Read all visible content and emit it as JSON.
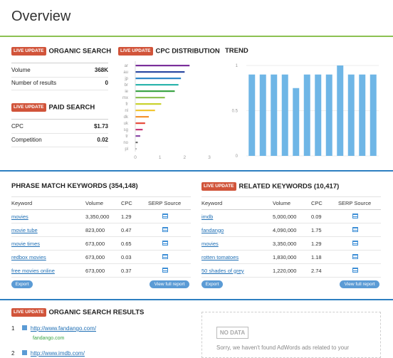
{
  "page": {
    "title": "Overview"
  },
  "organic_search": {
    "badge": "live update",
    "title": "ORGANIC SEARCH",
    "rows": [
      {
        "label": "Volume",
        "value": "368K"
      },
      {
        "label": "Number of results",
        "value": "0"
      }
    ]
  },
  "paid_search": {
    "badge": "live update",
    "title": "PAID SEARCH",
    "rows": [
      {
        "label": "CPC",
        "value": "$1.73"
      },
      {
        "label": "Competition",
        "value": "0.02"
      }
    ]
  },
  "cpc_distribution": {
    "badge": "live update",
    "title": "CPC DISTRIBUTION"
  },
  "trend": {
    "title": "TREND"
  },
  "chart_data": [
    {
      "type": "bar",
      "orientation": "horizontal",
      "categories": [
        "ar",
        "au",
        "jp",
        "br",
        "ie",
        "mx",
        "fr",
        "nl",
        "dk",
        "uk",
        "sg",
        "tr",
        "no",
        "pl"
      ],
      "values": [
        2.2,
        2.0,
        1.85,
        1.75,
        1.6,
        1.2,
        1.05,
        0.8,
        0.55,
        0.4,
        0.3,
        0.2,
        0.1,
        0.05
      ],
      "colors": [
        "#7b2f9b",
        "#2c4aa3",
        "#2e86c8",
        "#2cb5ad",
        "#3aa444",
        "#8cc152",
        "#c9d22d",
        "#f2c531",
        "#f59331",
        "#e74c3c",
        "#c73a7a",
        "#8b4aa8",
        "#6b6b6b",
        "#a0a0a0"
      ],
      "xticks": [
        "0",
        "1",
        "2",
        "3"
      ],
      "xlim": [
        0,
        3
      ]
    },
    {
      "type": "bar",
      "values": [
        0.9,
        0.9,
        0.9,
        0.9,
        0.75,
        0.9,
        0.9,
        0.9,
        1.0,
        0.9,
        0.9,
        0.9
      ],
      "yticks": [
        "1",
        "0.5",
        "0"
      ],
      "ylim": [
        0,
        1
      ],
      "color": "#6fb6e6"
    }
  ],
  "phrase_match": {
    "title": "PHRASE MATCH KEYWORDS (354,148)",
    "columns": [
      "Keyword",
      "Volume",
      "CPC",
      "SERP Source"
    ],
    "rows": [
      {
        "keyword": "movies",
        "volume": "3,350,000",
        "cpc": "1.29"
      },
      {
        "keyword": "movie tube",
        "volume": "823,000",
        "cpc": "0.47"
      },
      {
        "keyword": "movie times",
        "volume": "673,000",
        "cpc": "0.65"
      },
      {
        "keyword": "redbox movies",
        "volume": "673,000",
        "cpc": "0.03"
      },
      {
        "keyword": "free movies online",
        "volume": "673,000",
        "cpc": "0.37"
      }
    ],
    "export": "Export",
    "view_full": "View full report"
  },
  "related": {
    "badge": "live update",
    "title": "RELATED KEYWORDS (10,417)",
    "columns": [
      "Keyword",
      "Volume",
      "CPC",
      "SERP Source"
    ],
    "rows": [
      {
        "keyword": "imdb",
        "volume": "5,000,000",
        "cpc": "0.09"
      },
      {
        "keyword": "fandango",
        "volume": "4,090,000",
        "cpc": "1.75"
      },
      {
        "keyword": "movies",
        "volume": "3,350,000",
        "cpc": "1.29"
      },
      {
        "keyword": "rotten tomatoes",
        "volume": "1,830,000",
        "cpc": "1.18"
      },
      {
        "keyword": "50 shades of grey",
        "volume": "1,220,000",
        "cpc": "2.74"
      }
    ],
    "export": "Export",
    "view_full": "View full report"
  },
  "organic_results": {
    "badge": "live update",
    "title": "ORGANIC SEARCH RESULTS",
    "items": [
      {
        "num": "1",
        "url": "http://www.fandango.com/",
        "domain": "fandango.com"
      },
      {
        "num": "2",
        "url": "http://www.imdb.com/"
      }
    ]
  },
  "ads": {
    "nodata": "NO DATA",
    "text": "Sorry, we haven't found AdWords ads related to your"
  }
}
